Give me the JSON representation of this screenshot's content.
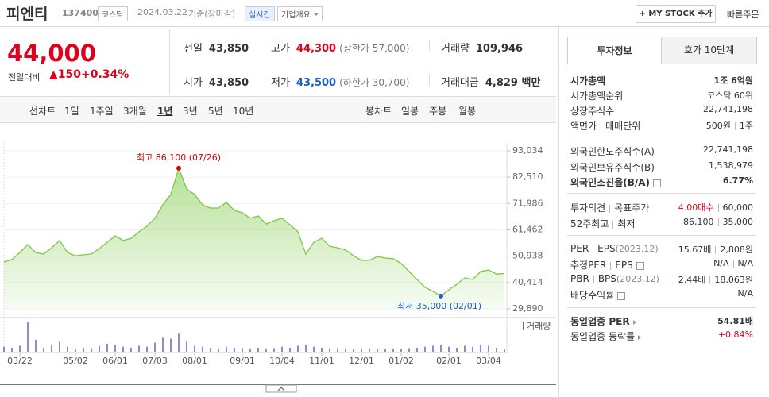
{
  "header": {
    "name": "피엔티",
    "code": "137400",
    "market": "코스닥",
    "date": "2024.03.22",
    "basis": "기준(장마감)",
    "realtime": "실시간",
    "company_info": "기업개요",
    "my_stock": "+ MY STOCK 추가",
    "quick_order": "빠른주문"
  },
  "quote": {
    "price": "44,000",
    "change_label": "전일대비",
    "change": "▲150",
    "change_rate": "+0.34%",
    "stats": [
      {
        "label": "전일",
        "value": "43,850"
      },
      {
        "label": "고가",
        "value": "44,300",
        "note": "(상한가 57,000)"
      },
      {
        "label": "거래량",
        "value": "109,946"
      },
      {
        "label": "시가",
        "value": "43,850"
      },
      {
        "label": "저가",
        "value": "43,500",
        "note": "(하한가 30,700)"
      },
      {
        "label": "거래대금",
        "value": "4,829 백만"
      }
    ]
  },
  "tabs": {
    "line": "선차트",
    "line_periods": [
      "1일",
      "1주일",
      "3개월",
      "1년",
      "3년",
      "5년",
      "10년"
    ],
    "candle": "봉차트",
    "candle_periods": [
      "일봉",
      "주봉",
      "월봉"
    ]
  },
  "chart_data": {
    "type": "area",
    "color": "#7cc843",
    "values": [
      48600,
      49600,
      52400,
      55600,
      52400,
      51800,
      54300,
      57200,
      52400,
      51100,
      51500,
      51800,
      54000,
      56500,
      59100,
      57200,
      58100,
      60700,
      62900,
      66100,
      71500,
      75600,
      86100,
      77800,
      75600,
      71500,
      70200,
      70200,
      72400,
      69200,
      68300,
      66100,
      67000,
      63800,
      65100,
      66100,
      63500,
      60700,
      51800,
      56500,
      58100,
      54900,
      54300,
      53400,
      51100,
      49300,
      49300,
      50800,
      50200,
      49900,
      48000,
      44800,
      41600,
      38500,
      36900,
      35000,
      37500,
      39700,
      42300,
      41600,
      44800,
      45400,
      43800,
      44000
    ],
    "xlim": [
      0,
      63
    ],
    "xticks": [
      {
        "value": 2,
        "label": "03/22"
      },
      {
        "value": 9,
        "label": "05/02"
      },
      {
        "value": 14,
        "label": "06/01"
      },
      {
        "value": 19,
        "label": "07/03"
      },
      {
        "value": 24,
        "label": "08/01"
      },
      {
        "value": 30,
        "label": "09/01"
      },
      {
        "value": 35,
        "label": "10/04"
      },
      {
        "value": 40,
        "label": "11/01"
      },
      {
        "value": 45,
        "label": "12/01"
      },
      {
        "value": 50,
        "label": "01/02"
      },
      {
        "value": 56,
        "label": "02/01"
      },
      {
        "value": 61,
        "label": "03/04"
      }
    ],
    "ylim": [
      29890,
      93034
    ],
    "yticks": [
      {
        "value": 93034,
        "label": "93,034"
      },
      {
        "value": 82510,
        "label": "82,510"
      },
      {
        "value": 71986,
        "label": "71,986"
      },
      {
        "value": 61462,
        "label": "61,462"
      },
      {
        "value": 50938,
        "label": "50,938"
      },
      {
        "value": 40414,
        "label": "40,414"
      },
      {
        "value": 29890,
        "label": "29,890"
      }
    ],
    "annotations": [
      {
        "label": "최고 86,100 (07/26)",
        "x": 22,
        "value": 86100,
        "color": "#d8000c"
      },
      {
        "label": "최저 35,000 (02/01)",
        "x": 55,
        "value": 35000,
        "color": "#1a5fc7"
      }
    ],
    "volume_name": "거래량",
    "volume_color": "#7a5fb3",
    "volume": [
      250000,
      200000,
      300000,
      1500000,
      600000,
      200000,
      350000,
      500000,
      250000,
      150000,
      200000,
      180000,
      300000,
      400000,
      350000,
      250000,
      200000,
      300000,
      250000,
      450000,
      700000,
      650000,
      900000,
      500000,
      300000,
      250000,
      200000,
      150000,
      250000,
      200000,
      180000,
      150000,
      200000,
      150000,
      180000,
      250000,
      200000,
      300000,
      350000,
      250000,
      200000,
      150000,
      180000,
      150000,
      120000,
      150000,
      130000,
      120000,
      140000,
      150000,
      130000,
      180000,
      200000,
      250000,
      300000,
      350000,
      250000,
      200000,
      300000,
      250000,
      350000,
      300000,
      200000,
      110000
    ]
  },
  "side": {
    "tabs": [
      "투자정보",
      "호가 10단계"
    ],
    "market_cap": {
      "label": "시가총액",
      "value": "1조 6억원"
    },
    "rank": {
      "label": "시가총액순위",
      "value": "코스닥 60위"
    },
    "shares": {
      "label": "상장주식수",
      "value": "22,741,198"
    },
    "par": {
      "label": [
        "액면가",
        "매매단위"
      ],
      "value": [
        "500원",
        "1주"
      ]
    },
    "foreign_limit": {
      "label": "외국인한도주식수(A)",
      "value": "22,741,198"
    },
    "foreign_hold": {
      "label": "외국인보유주식수(B)",
      "value": "1,538,979"
    },
    "foreign_rate": {
      "label": "외국인소진율(B/A)",
      "value": "6.77%"
    },
    "opinion": {
      "label": [
        "투자의견",
        "목표주가"
      ],
      "value": [
        "4.00매수",
        "60,000"
      ]
    },
    "week52": {
      "label": [
        "52주최고",
        "최저"
      ],
      "value": [
        "86,100",
        "35,000"
      ]
    },
    "per": {
      "label": [
        "PER",
        "EPS"
      ],
      "note": "(2023.12)",
      "value": [
        "15.67배",
        "2,808원"
      ]
    },
    "est_per": {
      "label": [
        "추정PER",
        "EPS"
      ],
      "value": [
        "N/A",
        "N/A"
      ]
    },
    "pbr": {
      "label": [
        "PBR",
        "BPS"
      ],
      "note": "(2023.12)",
      "value": [
        "2.44배",
        "18,063원"
      ]
    },
    "dividend": {
      "label": "배당수익률",
      "value": "N/A"
    },
    "sector_per": {
      "label": "동일업종 PER",
      "value": "54.81배"
    },
    "sector_change": {
      "label": "동일업종 등락률",
      "value": "+0.84%"
    }
  }
}
